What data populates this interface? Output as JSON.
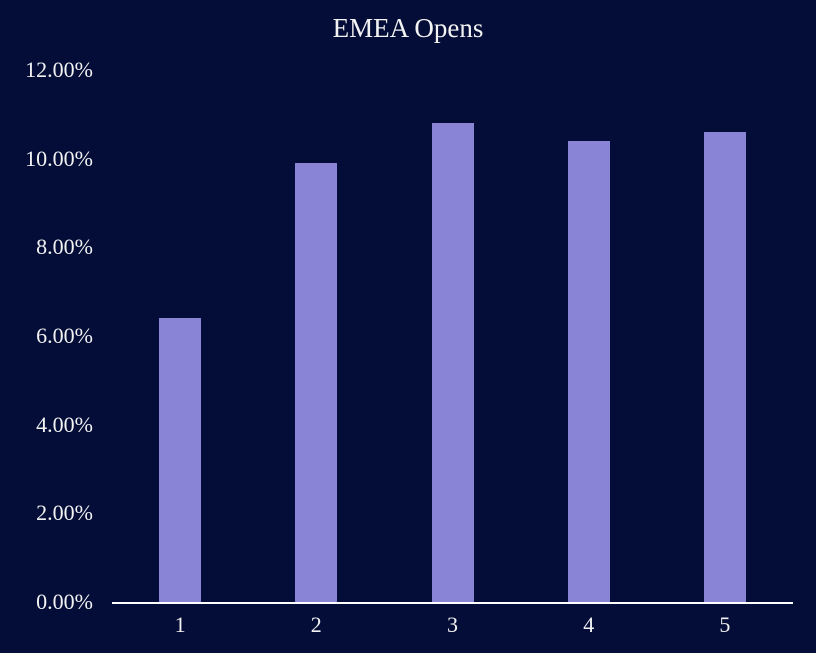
{
  "chart_data": {
    "type": "bar",
    "title": "EMEA Opens",
    "categories": [
      "1",
      "2",
      "3",
      "4",
      "5"
    ],
    "values": [
      6.4,
      9.9,
      10.8,
      10.4,
      10.6
    ],
    "value_unit": "%",
    "xlabel": "",
    "ylabel": "",
    "ylim": [
      0,
      12
    ],
    "ytick_step": 2,
    "ytick_labels": [
      "0.00%",
      "2.00%",
      "4.00%",
      "6.00%",
      "8.00%",
      "10.00%",
      "12.00%"
    ],
    "grid": false,
    "legend_position": "none",
    "colors": {
      "background": "#030D37",
      "bar": "#8A84D6",
      "text": "#F2F2F2",
      "axis_line": "#FFFFFF"
    }
  }
}
